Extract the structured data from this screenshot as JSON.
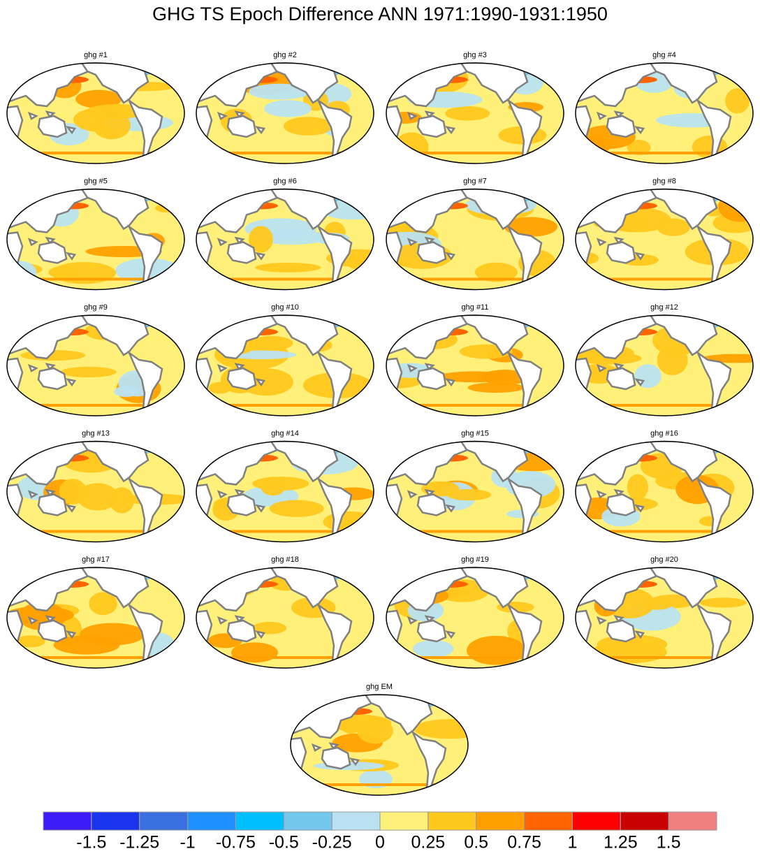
{
  "title": "GHG TS Epoch Difference ANN 1971:1990-1931:1950",
  "panels": [
    {
      "label": "ghg #1"
    },
    {
      "label": "ghg #2"
    },
    {
      "label": "ghg #3"
    },
    {
      "label": "ghg #4"
    },
    {
      "label": "ghg #5"
    },
    {
      "label": "ghg #6"
    },
    {
      "label": "ghg #7"
    },
    {
      "label": "ghg #8"
    },
    {
      "label": "ghg #9"
    },
    {
      "label": "ghg #10"
    },
    {
      "label": "ghg #11"
    },
    {
      "label": "ghg #12"
    },
    {
      "label": "ghg #13"
    },
    {
      "label": "ghg #14"
    },
    {
      "label": "ghg #15"
    },
    {
      "label": "ghg #16"
    },
    {
      "label": "ghg #17"
    },
    {
      "label": "ghg #18"
    },
    {
      "label": "ghg #19"
    },
    {
      "label": "ghg #20"
    },
    {
      "label": "ghg EM"
    }
  ],
  "colorbar": {
    "levels": [
      -1.5,
      -1.25,
      -1,
      -0.75,
      -0.5,
      -0.25,
      0,
      0.25,
      0.5,
      0.75,
      1,
      1.25,
      1.5
    ],
    "colors": [
      "#3e1cf7",
      "#1a34ee",
      "#3a6fe0",
      "#1e90ff",
      "#00bfff",
      "#74c7ef",
      "#b9e1f1",
      "#fff07a",
      "#ffc81e",
      "#ffa000",
      "#ff6400",
      "#ff0000",
      "#c80000",
      "#f08080"
    ]
  }
}
